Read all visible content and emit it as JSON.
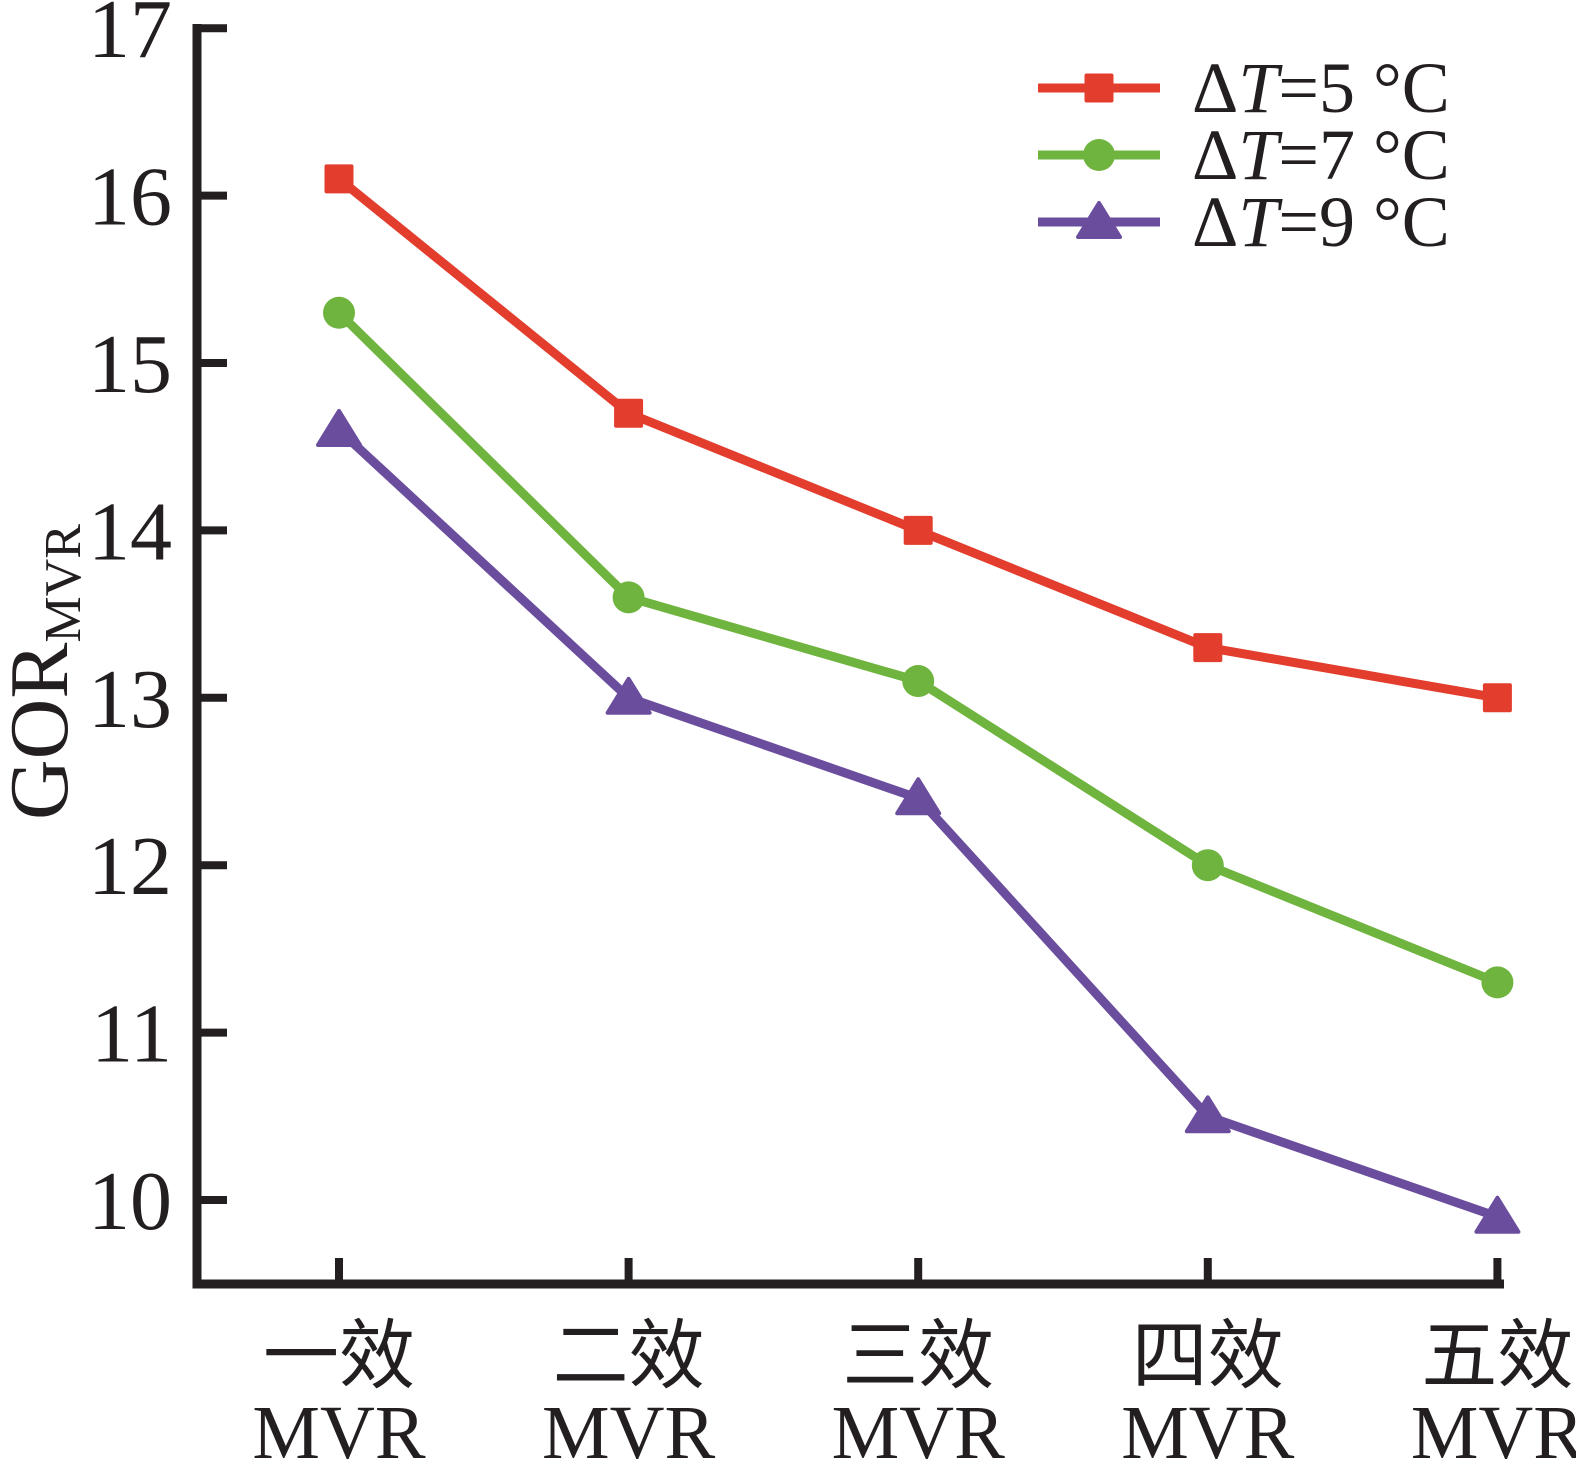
{
  "figure": {
    "background": "#ffffff"
  },
  "chart_data": {
    "type": "line",
    "title": "",
    "xlabel": "",
    "ylabel_main": "GOR",
    "ylabel_sub": "MVR",
    "ylim": [
      9.5,
      17
    ],
    "yticks": [
      10,
      11,
      12,
      13,
      14,
      15,
      16,
      17
    ],
    "categories": [
      {
        "line1": "一效",
        "line2": "MVR"
      },
      {
        "line1": "二效",
        "line2": "MVR"
      },
      {
        "line1": "三效",
        "line2": "MVR"
      },
      {
        "line1": "四效",
        "line2": "MVR"
      },
      {
        "line1": "五效",
        "line2": "MVR"
      }
    ],
    "series": [
      {
        "name": "ΔT=5 °C",
        "label_parts": {
          "delta": "Δ",
          "variable": "T",
          "rest": "=5 °C"
        },
        "marker": "square",
        "color": "#e23d2d",
        "values": [
          16.1,
          14.7,
          14.0,
          13.3,
          13.0
        ]
      },
      {
        "name": "ΔT=7 °C",
        "label_parts": {
          "delta": "Δ",
          "variable": "T",
          "rest": "=7 °C"
        },
        "marker": "circle",
        "color": "#6fb43e",
        "values": [
          15.3,
          13.6,
          13.1,
          12.0,
          11.3
        ]
      },
      {
        "name": "ΔT=9 °C",
        "label_parts": {
          "delta": "Δ",
          "variable": "T",
          "rest": "=9 °C"
        },
        "marker": "triangle",
        "color": "#6b4d9e",
        "values": [
          14.6,
          13.0,
          12.4,
          10.5,
          9.9
        ]
      }
    ],
    "legend_position": "top-right",
    "grid": false,
    "axis_color": "#231f20"
  }
}
